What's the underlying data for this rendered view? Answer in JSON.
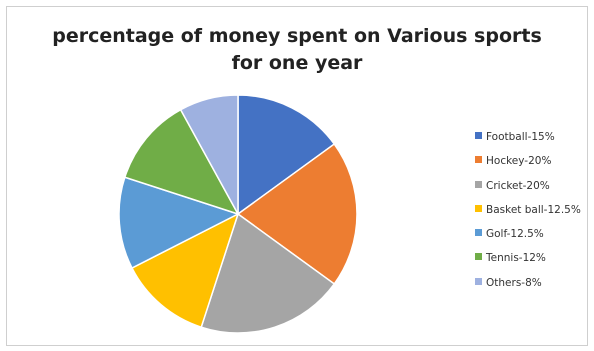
{
  "chart_data": {
    "type": "pie",
    "title": [
      "percentage of money spent on Various sports",
      "for one year"
    ],
    "slices": [
      {
        "label": "Football-15%",
        "value": 15,
        "color": "#4472c4"
      },
      {
        "label": "Hockey-20%",
        "value": 20,
        "color": "#ed7d31"
      },
      {
        "label": "Cricket-20%",
        "value": 20,
        "color": "#a5a5a5"
      },
      {
        "label": "Basket ball-12.5%",
        "value": 12.5,
        "color": "#ffc000"
      },
      {
        "label": "Golf-12.5%",
        "value": 12.5,
        "color": "#5b9bd5"
      },
      {
        "label": "Tennis-12%",
        "value": 12,
        "color": "#70ad47"
      },
      {
        "label": "Others-8%",
        "value": 8,
        "color": "#9eb1e0"
      }
    ],
    "legend_position": "right"
  }
}
